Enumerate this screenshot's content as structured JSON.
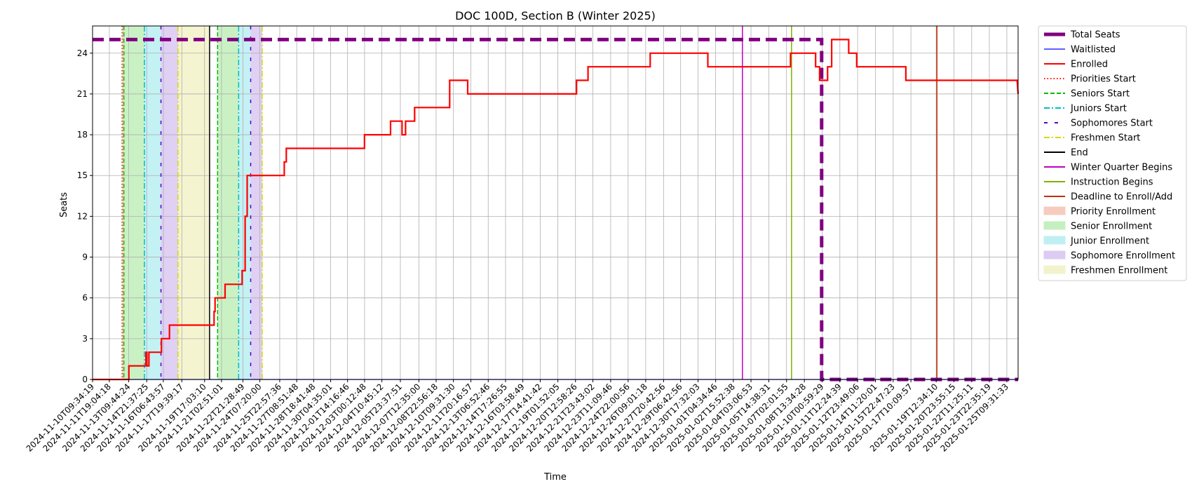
{
  "chart_data": {
    "type": "line",
    "title": "DOC 100D, Section B (Winter 2025)",
    "xlabel": "Time",
    "ylabel": "Seats",
    "ylim": [
      0,
      26
    ],
    "yticks": [
      0,
      3,
      6,
      9,
      12,
      15,
      18,
      21,
      24
    ],
    "xlim": [
      "2024-11-10T09:34:19",
      "2025-01-26T08:00:00"
    ],
    "grid": true,
    "legend_placement": "outside-right",
    "xtick_labels": [
      "2024-11-10T09:34:19",
      "2024-11-11T19:04:18",
      "2024-11-13T09:44:24",
      "2024-11-14T21:37:25",
      "2024-11-16T06:43:57",
      "2024-11-17T19:39:17",
      "2024-11-19T17:03:10",
      "2024-11-21T02:51:01",
      "2024-11-22T21:28:49",
      "2024-11-24T07:20:00",
      "2024-11-25T22:57:36",
      "2024-11-27T08:51:48",
      "2024-11-28T18:41:48",
      "2024-11-30T04:35:01",
      "2024-12-01T14:16:46",
      "2024-12-03T00:12:48",
      "2024-12-04T10:45:12",
      "2024-12-05T23:37:51",
      "2024-12-07T12:35:00",
      "2024-12-08T22:56:18",
      "2024-12-10T09:31:30",
      "2024-12-11T20:16:57",
      "2024-12-13T06:52:46",
      "2024-12-14T17:26:55",
      "2024-12-16T03:58:49",
      "2024-12-17T14:41:42",
      "2024-12-19T01:52:05",
      "2024-12-20T12:58:26",
      "2024-12-21T23:43:02",
      "2024-12-23T11:09:46",
      "2024-12-24T22:00:56",
      "2024-12-26T09:01:18",
      "2024-12-27T20:42:56",
      "2024-12-29T06:42:56",
      "2024-12-30T17:32:03",
      "2025-01-01T04:34:46",
      "2025-01-02T15:52:38",
      "2025-01-04T03:06:53",
      "2025-01-05T14:38:31",
      "2025-01-07T02:01:55",
      "2025-01-08T13:34:28",
      "2025-01-10T00:59:29",
      "2025-01-11T12:24:39",
      "2025-01-12T23:49:06",
      "2025-01-14T11:20:01",
      "2025-01-15T22:47:23",
      "2025-01-17T10:09:57",
      "2025-01-19T12:34:10",
      "2025-01-20T23:55:15",
      "2025-01-22T11:25:11",
      "2025-01-23T22:35:19",
      "2025-01-25T09:31:33"
    ],
    "series": [
      {
        "name": "Total Seats",
        "color": "#800080",
        "style": "dashed-thick",
        "points": [
          [
            "2024-11-10T09:34:19",
            25
          ],
          [
            "2025-01-10T00:00:00",
            25
          ],
          [
            "2025-01-10T00:00:00",
            0
          ],
          [
            "2025-01-26T08:00:00",
            0
          ]
        ]
      },
      {
        "name": "Waitlisted",
        "color": "#0000ff",
        "style": "solid-thin",
        "points": [
          [
            "2024-11-10T09:34:19",
            0
          ],
          [
            "2025-01-26T08:00:00",
            0
          ]
        ]
      },
      {
        "name": "Enrolled",
        "color": "#ff0000",
        "style": "solid",
        "points": [
          [
            "2024-11-10T09:34:19",
            0
          ],
          [
            "2024-11-13T10:00:00",
            0
          ],
          [
            "2024-11-13T10:00:00",
            1
          ],
          [
            "2024-11-14T20:00:00",
            1
          ],
          [
            "2024-11-14T20:00:00",
            2
          ],
          [
            "2024-11-14T22:00:00",
            2
          ],
          [
            "2024-11-14T22:00:00",
            1
          ],
          [
            "2024-11-15T02:00:00",
            1
          ],
          [
            "2024-11-15T02:00:00",
            2
          ],
          [
            "2024-11-16T03:00:00",
            2
          ],
          [
            "2024-11-16T03:00:00",
            3
          ],
          [
            "2024-11-16T19:00:00",
            3
          ],
          [
            "2024-11-16T19:00:00",
            4
          ],
          [
            "2024-11-20T12:00:00",
            4
          ],
          [
            "2024-11-20T12:00:00",
            5
          ],
          [
            "2024-11-20T14:00:00",
            5
          ],
          [
            "2024-11-20T14:00:00",
            6
          ],
          [
            "2024-11-21T10:00:00",
            6
          ],
          [
            "2024-11-21T10:00:00",
            7
          ],
          [
            "2024-11-22T20:00:00",
            7
          ],
          [
            "2024-11-22T20:00:00",
            8
          ],
          [
            "2024-11-23T02:00:00",
            8
          ],
          [
            "2024-11-23T02:00:00",
            12
          ],
          [
            "2024-11-23T06:00:00",
            12
          ],
          [
            "2024-11-23T06:00:00",
            15
          ],
          [
            "2024-11-26T08:00:00",
            15
          ],
          [
            "2024-11-26T08:00:00",
            16
          ],
          [
            "2024-11-26T12:00:00",
            16
          ],
          [
            "2024-11-26T12:00:00",
            17
          ],
          [
            "2024-12-03T00:00:00",
            17
          ],
          [
            "2024-12-03T00:00:00",
            18
          ],
          [
            "2024-12-05T04:00:00",
            18
          ],
          [
            "2024-12-05T04:00:00",
            19
          ],
          [
            "2024-12-06T03:00:00",
            19
          ],
          [
            "2024-12-06T03:00:00",
            18
          ],
          [
            "2024-12-06T10:00:00",
            18
          ],
          [
            "2024-12-06T10:00:00",
            19
          ],
          [
            "2024-12-07T04:00:00",
            19
          ],
          [
            "2024-12-07T04:00:00",
            20
          ],
          [
            "2024-12-10T02:00:00",
            20
          ],
          [
            "2024-12-10T02:00:00",
            22
          ],
          [
            "2024-12-11T14:00:00",
            22
          ],
          [
            "2024-12-11T14:00:00",
            21
          ],
          [
            "2024-12-20T15:00:00",
            21
          ],
          [
            "2024-12-20T15:00:00",
            22
          ],
          [
            "2024-12-21T14:00:00",
            22
          ],
          [
            "2024-12-21T14:00:00",
            23
          ],
          [
            "2024-12-26T18:00:00",
            23
          ],
          [
            "2024-12-26T18:00:00",
            24
          ],
          [
            "2024-12-31T13:00:00",
            24
          ],
          [
            "2024-12-31T13:00:00",
            23
          ],
          [
            "2025-01-07T10:00:00",
            23
          ],
          [
            "2025-01-07T10:00:00",
            24
          ],
          [
            "2025-01-09T12:00:00",
            24
          ],
          [
            "2025-01-09T12:00:00",
            23
          ],
          [
            "2025-01-09T20:00:00",
            23
          ],
          [
            "2025-01-09T20:00:00",
            22
          ],
          [
            "2025-01-10T12:00:00",
            22
          ],
          [
            "2025-01-10T12:00:00",
            23
          ],
          [
            "2025-01-10T20:00:00",
            23
          ],
          [
            "2025-01-10T20:00:00",
            25
          ],
          [
            "2025-01-12T06:00:00",
            25
          ],
          [
            "2025-01-12T06:00:00",
            24
          ],
          [
            "2025-01-12T22:00:00",
            24
          ],
          [
            "2025-01-12T22:00:00",
            23
          ],
          [
            "2025-01-17T00:00:00",
            23
          ],
          [
            "2025-01-17T00:00:00",
            22
          ],
          [
            "2025-01-26T06:00:00",
            22
          ],
          [
            "2025-01-26T08:00:00",
            21
          ]
        ]
      }
    ],
    "event_lines": [
      {
        "name": "Priorities Start",
        "time": "2024-11-12T20:30:00",
        "color": "#ff0000",
        "style": "dotted"
      },
      {
        "name": "Seniors Start",
        "time": "2024-11-13T00:00:00",
        "color": "#00bb00",
        "style": "dashed"
      },
      {
        "name": "Juniors Start",
        "time": "2024-11-14T17:00:00",
        "color": "#00bfbf",
        "style": "dashdot"
      },
      {
        "name": "Sophomores Start",
        "time": "2024-11-16T02:00:00",
        "color": "#5500cc",
        "style": "loosedash"
      },
      {
        "name": "Freshmen Start",
        "time": "2024-11-17T12:00:00",
        "color": "#d8d800",
        "style": "dashdot"
      },
      {
        "name": "End",
        "time": "2024-11-20T03:00:00",
        "color": "#000000",
        "style": "solid"
      },
      {
        "name": "Seniors Start",
        "time": "2024-11-20T19:00:00",
        "color": "#00bb00",
        "style": "dashed"
      },
      {
        "name": "Juniors Start",
        "time": "2024-11-22T13:00:00",
        "color": "#00bfbf",
        "style": "dashdot"
      },
      {
        "name": "Sophomores Start",
        "time": "2024-11-23T13:00:00",
        "color": "#5500cc",
        "style": "loosedash"
      },
      {
        "name": "Freshmen Start",
        "time": "2024-11-24T12:00:00",
        "color": "#d8d800",
        "style": "dashdot"
      },
      {
        "name": "Winter Quarter Begins",
        "time": "2025-01-03T10:00:00",
        "color": "#c000c0",
        "style": "solid"
      },
      {
        "name": "Instruction Begins",
        "time": "2025-01-07T12:00:00",
        "color": "#80b000",
        "style": "solid"
      },
      {
        "name": "Deadline to Enroll/Add",
        "time": "2025-01-19T14:00:00",
        "color": "#c03000",
        "style": "solid"
      }
    ],
    "spans": [
      {
        "name": "Priority Enrollment",
        "start": "2024-11-12T20:30:00",
        "end": "2024-11-13T00:00:00",
        "color": "#f4c0b0"
      },
      {
        "name": "Senior Enrollment",
        "start": "2024-11-13T00:00:00",
        "end": "2024-11-14T17:00:00",
        "color": "#b8ecb0"
      },
      {
        "name": "Junior Enrollment",
        "start": "2024-11-14T17:00:00",
        "end": "2024-11-16T02:00:00",
        "color": "#b0ecf0"
      },
      {
        "name": "Sophomore Enrollment",
        "start": "2024-11-16T02:00:00",
        "end": "2024-11-17T12:00:00",
        "color": "#d4c0f0"
      },
      {
        "name": "Freshmen Enrollment",
        "start": "2024-11-17T12:00:00",
        "end": "2024-11-20T03:00:00",
        "color": "#f0f0c0"
      },
      {
        "name": "Senior Enrollment",
        "start": "2024-11-20T19:00:00",
        "end": "2024-11-22T13:00:00",
        "color": "#b8ecb0"
      },
      {
        "name": "Junior Enrollment",
        "start": "2024-11-22T13:00:00",
        "end": "2024-11-23T13:00:00",
        "color": "#b0ecf0"
      },
      {
        "name": "Sophomore Enrollment",
        "start": "2024-11-23T13:00:00",
        "end": "2024-11-24T12:00:00",
        "color": "#d4c0f0"
      }
    ],
    "legend": [
      {
        "label": "Total Seats",
        "color": "#800080",
        "kind": "line",
        "style": "solid-thick"
      },
      {
        "label": "Waitlisted",
        "color": "#0000ff",
        "kind": "line",
        "style": "solid-thin"
      },
      {
        "label": "Enrolled",
        "color": "#ff0000",
        "kind": "line",
        "style": "solid"
      },
      {
        "label": "Priorities Start",
        "color": "#ff0000",
        "kind": "line",
        "style": "dotted"
      },
      {
        "label": "Seniors Start",
        "color": "#00bb00",
        "kind": "line",
        "style": "dashed"
      },
      {
        "label": "Juniors Start",
        "color": "#00bfbf",
        "kind": "line",
        "style": "dashdot"
      },
      {
        "label": "Sophomores Start",
        "color": "#5500cc",
        "kind": "line",
        "style": "loosedash"
      },
      {
        "label": "Freshmen Start",
        "color": "#d8d800",
        "kind": "line",
        "style": "dashdot"
      },
      {
        "label": "End",
        "color": "#000000",
        "kind": "line",
        "style": "solid"
      },
      {
        "label": "Winter Quarter Begins",
        "color": "#c000c0",
        "kind": "line",
        "style": "solid"
      },
      {
        "label": "Instruction Begins",
        "color": "#80b000",
        "kind": "line",
        "style": "solid"
      },
      {
        "label": "Deadline to Enroll/Add",
        "color": "#c03000",
        "kind": "line",
        "style": "solid"
      },
      {
        "label": "Priority Enrollment",
        "color": "#f4c0b0",
        "kind": "patch"
      },
      {
        "label": "Senior Enrollment",
        "color": "#b8ecb0",
        "kind": "patch"
      },
      {
        "label": "Junior Enrollment",
        "color": "#b0ecf0",
        "kind": "patch"
      },
      {
        "label": "Sophomore Enrollment",
        "color": "#d4c0f0",
        "kind": "patch"
      },
      {
        "label": "Freshmen Enrollment",
        "color": "#f0f0c0",
        "kind": "patch"
      }
    ]
  }
}
